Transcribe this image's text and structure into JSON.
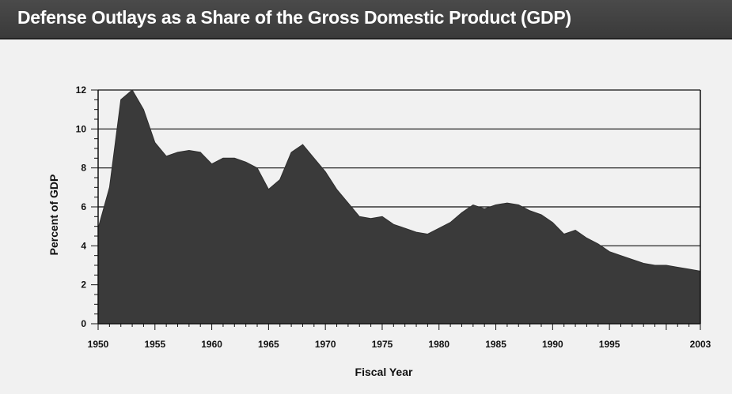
{
  "header": {
    "title": "Defense Outlays as a Share of the Gross Domestic Product (GDP)"
  },
  "colors": {
    "background": "#f1f1f1",
    "title_bar": "#3f3f3f",
    "area_fill": "#3a3a3a",
    "gridline": "#111111"
  },
  "chart_data": {
    "type": "area",
    "title": "Defense Outlays as a Share of the Gross Domestic Product (GDP)",
    "xlabel": "Fiscal Year",
    "ylabel": "Percent of GDP",
    "xlim": [
      1950,
      2003
    ],
    "ylim": [
      0,
      12
    ],
    "grid": true,
    "x_ticks": [
      "1950",
      "1955",
      "1960",
      "1965",
      "1970",
      "1975",
      "1980",
      "1985",
      "1990",
      "1995",
      "2003"
    ],
    "y_ticks": [
      "0",
      "2",
      "4",
      "6",
      "8",
      "10",
      "12"
    ],
    "x": [
      1950,
      1951,
      1952,
      1953,
      1954,
      1955,
      1956,
      1957,
      1958,
      1959,
      1960,
      1961,
      1962,
      1963,
      1964,
      1965,
      1966,
      1967,
      1968,
      1969,
      1970,
      1971,
      1972,
      1973,
      1974,
      1975,
      1976,
      1977,
      1978,
      1979,
      1980,
      1981,
      1982,
      1983,
      1984,
      1985,
      1986,
      1987,
      1988,
      1989,
      1990,
      1991,
      1992,
      1993,
      1994,
      1995,
      1996,
      1997,
      1998,
      1999,
      2000,
      2001,
      2002,
      2003
    ],
    "series": [
      {
        "values": [
          4.9,
          7.0,
          11.5,
          12.0,
          11.0,
          9.3,
          8.6,
          8.8,
          8.9,
          8.8,
          8.2,
          8.5,
          8.5,
          8.3,
          8.0,
          6.9,
          7.4,
          8.8,
          9.2,
          8.5,
          7.8,
          6.9,
          6.2,
          5.5,
          5.4,
          5.5,
          5.1,
          4.9,
          4.7,
          4.6,
          4.9,
          5.2,
          5.7,
          6.1,
          5.9,
          6.1,
          6.2,
          6.1,
          5.8,
          5.6,
          5.2,
          4.6,
          4.8,
          4.4,
          4.1,
          3.7,
          3.5,
          3.3,
          3.1,
          3.0,
          3.0,
          2.9,
          2.8,
          2.7
        ]
      }
    ]
  }
}
